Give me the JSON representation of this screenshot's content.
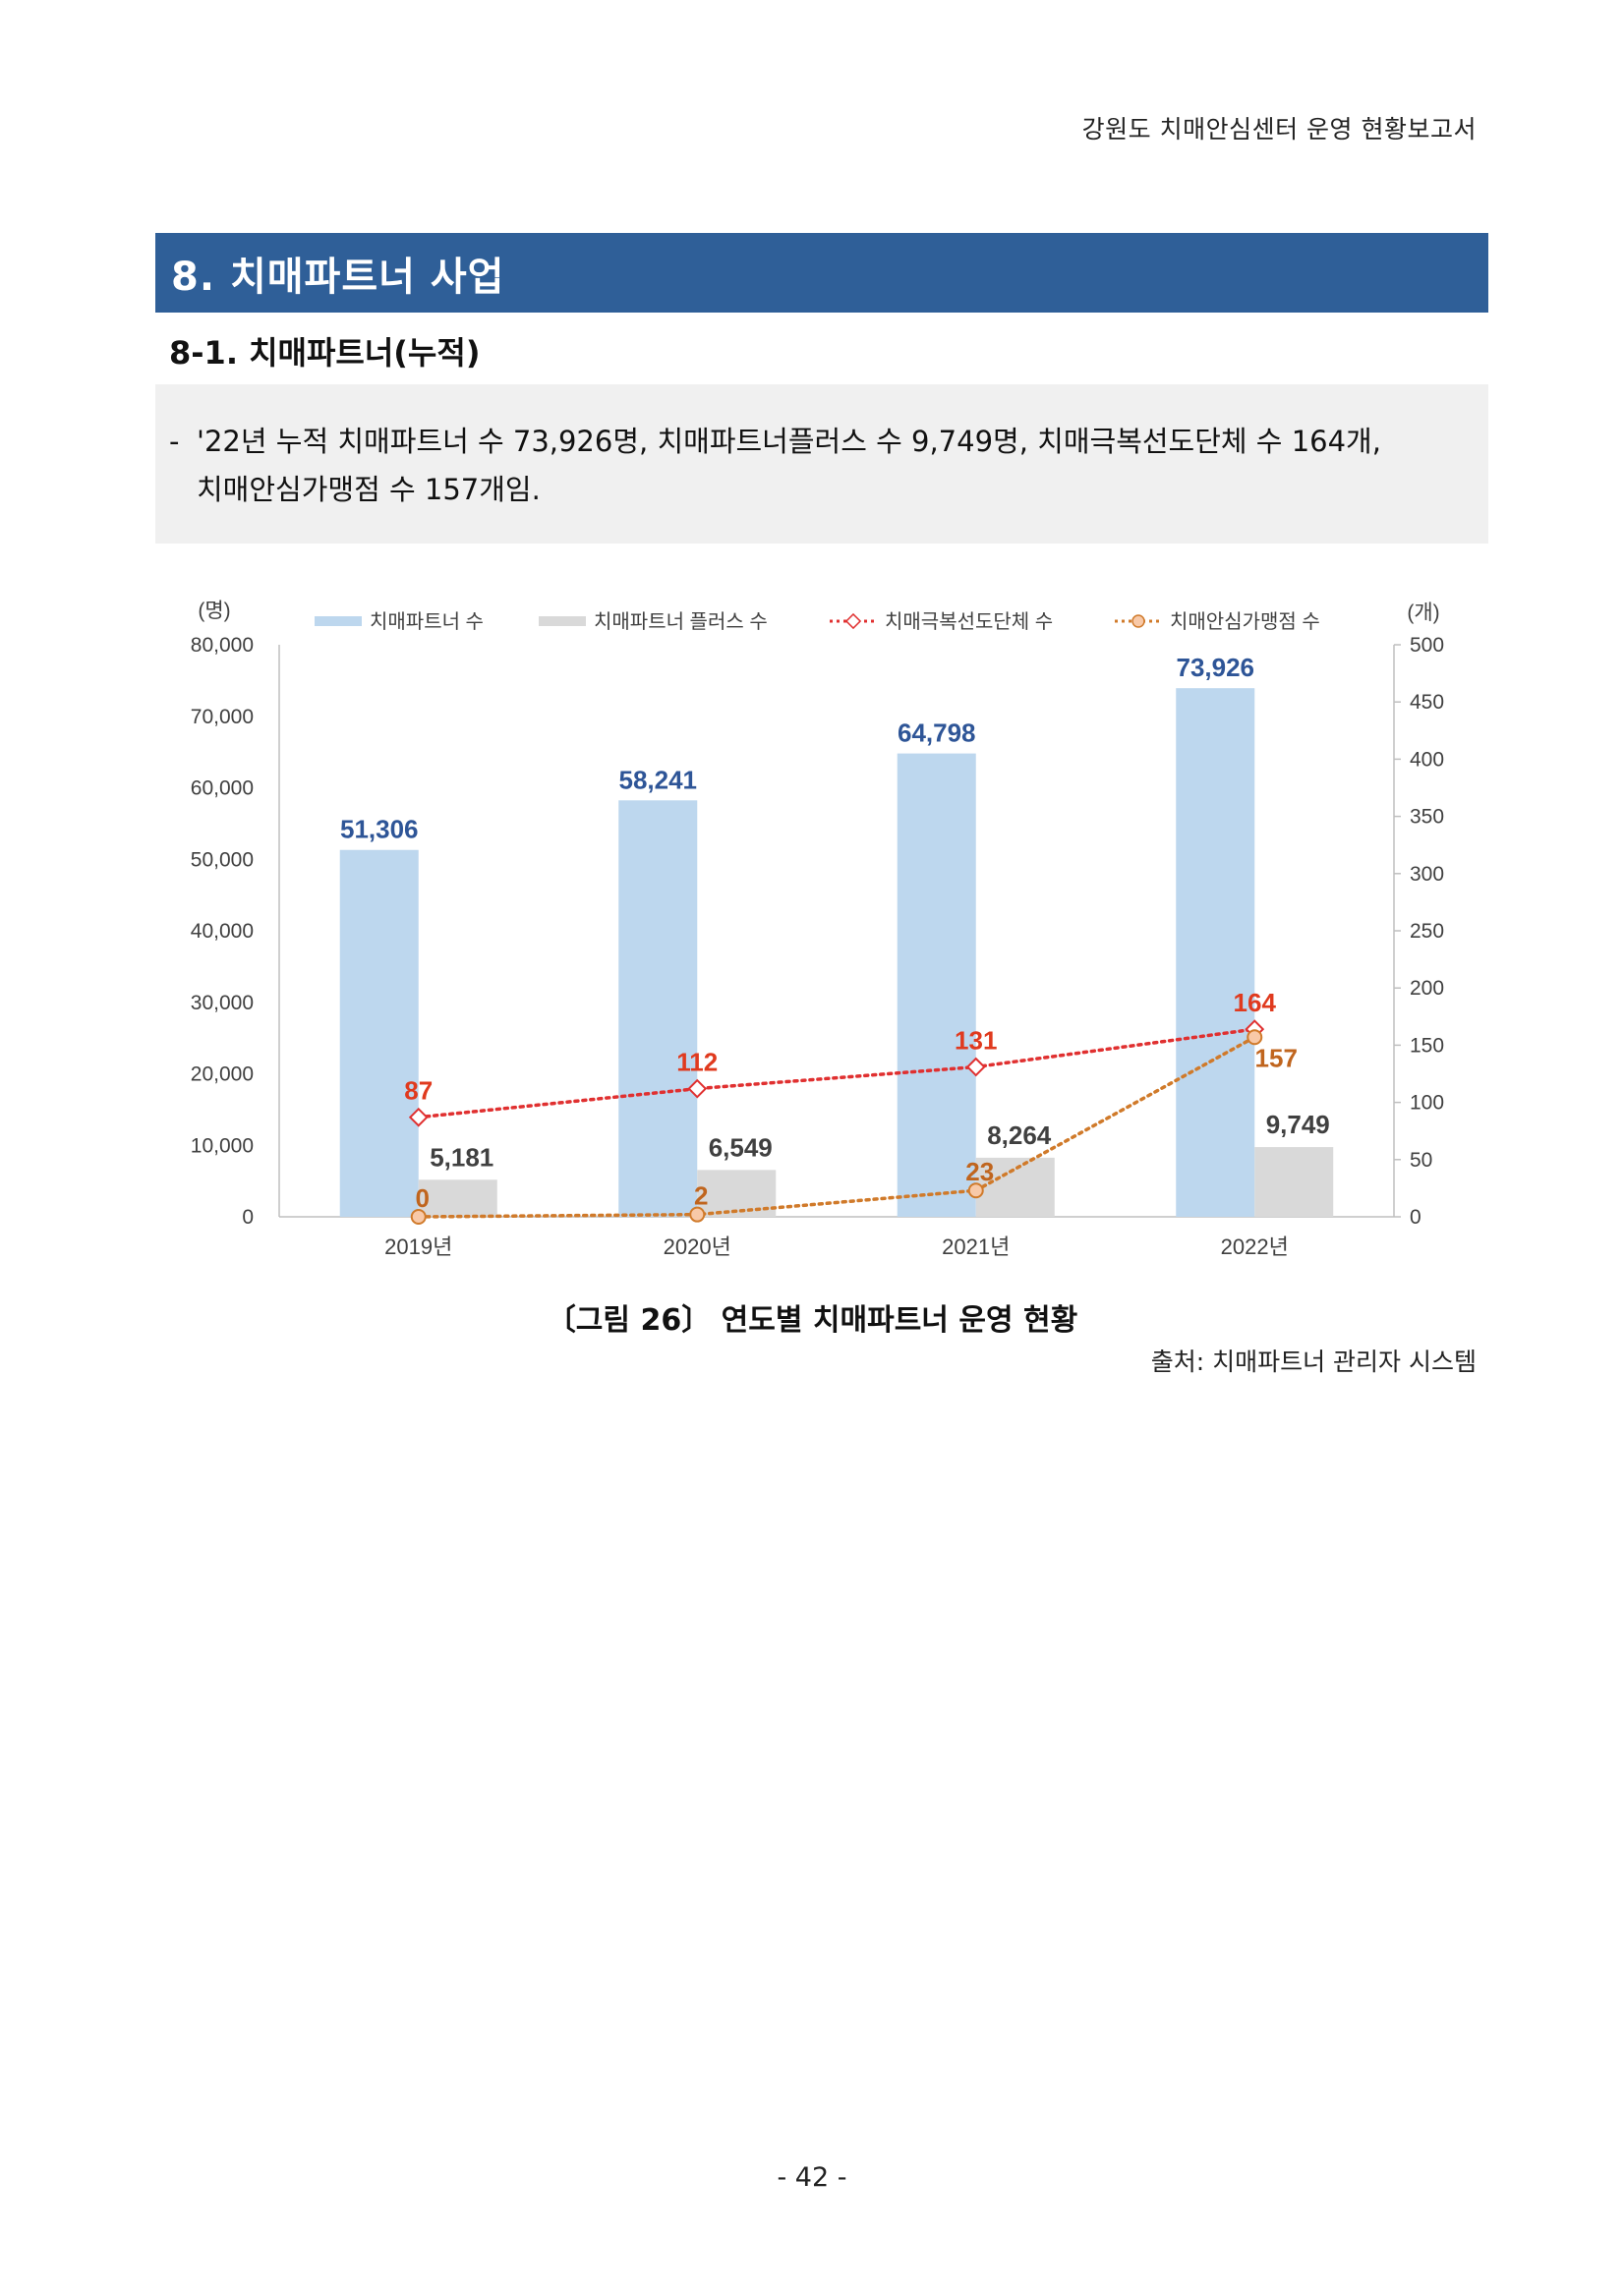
{
  "header": {
    "running_title": "강원도 치매안심센터 운영 현황보고서"
  },
  "section": {
    "title": "8. 치매파트너 사업"
  },
  "subsection": {
    "title": "8-1. 치매파트너(누적)"
  },
  "summary": {
    "dash": "-",
    "line1": "'22년 누적 치매파트너 수 73,926명, 치매파트너플러스 수 9,749명, 치매극복선도단체 수 164개,",
    "line2": "치매안심가맹점 수 157개임."
  },
  "chart_data": {
    "type": "bar",
    "categories": [
      "2019년",
      "2020년",
      "2021년",
      "2022년"
    ],
    "y_left": {
      "unit": "(명)",
      "ticks": [
        "0",
        "10,000",
        "20,000",
        "30,000",
        "40,000",
        "50,000",
        "60,000",
        "70,000",
        "80,000"
      ],
      "range": [
        0,
        80000
      ]
    },
    "y_right": {
      "unit": "(개)",
      "ticks": [
        "0",
        "50",
        "100",
        "150",
        "200",
        "250",
        "300",
        "350",
        "400",
        "450",
        "500"
      ],
      "range": [
        0,
        500
      ]
    },
    "legend_position": "top",
    "grid": false,
    "series": [
      {
        "name": "치매파트너 수",
        "kind": "bar",
        "axis": "left",
        "color": "#bdd7ee",
        "label_color": "#2e5597",
        "values": [
          51306,
          58241,
          64798,
          73926
        ],
        "labels": [
          "51,306",
          "58,241",
          "64,798",
          "73,926"
        ]
      },
      {
        "name": "치매파트너 플러스 수",
        "kind": "bar",
        "axis": "left",
        "color": "#d9d9d9",
        "label_color": "#404040",
        "values": [
          5181,
          6549,
          8264,
          9749
        ],
        "labels": [
          "5,181",
          "6,549",
          "8,264",
          "9,749"
        ]
      },
      {
        "name": "치매극복선도단체 수",
        "kind": "line",
        "axis": "right",
        "color": "#e03030",
        "label_color": "#e03a1e",
        "values": [
          87,
          112,
          131,
          164
        ],
        "labels": [
          "87",
          "112",
          "131",
          "164"
        ]
      },
      {
        "name": "치매안심가맹점 수",
        "kind": "line",
        "axis": "right",
        "color": "#d07a2a",
        "label_color": "#c0651e",
        "values": [
          0,
          2,
          23,
          157
        ],
        "labels": [
          "0",
          "2",
          "23",
          "157"
        ]
      }
    ]
  },
  "figure": {
    "caption": "〔그림 26〕 연도별 치매파트너 운영 현황",
    "source": "출처: 치매파트너 관리자 시스템"
  },
  "page": {
    "number": "- 42 -"
  }
}
